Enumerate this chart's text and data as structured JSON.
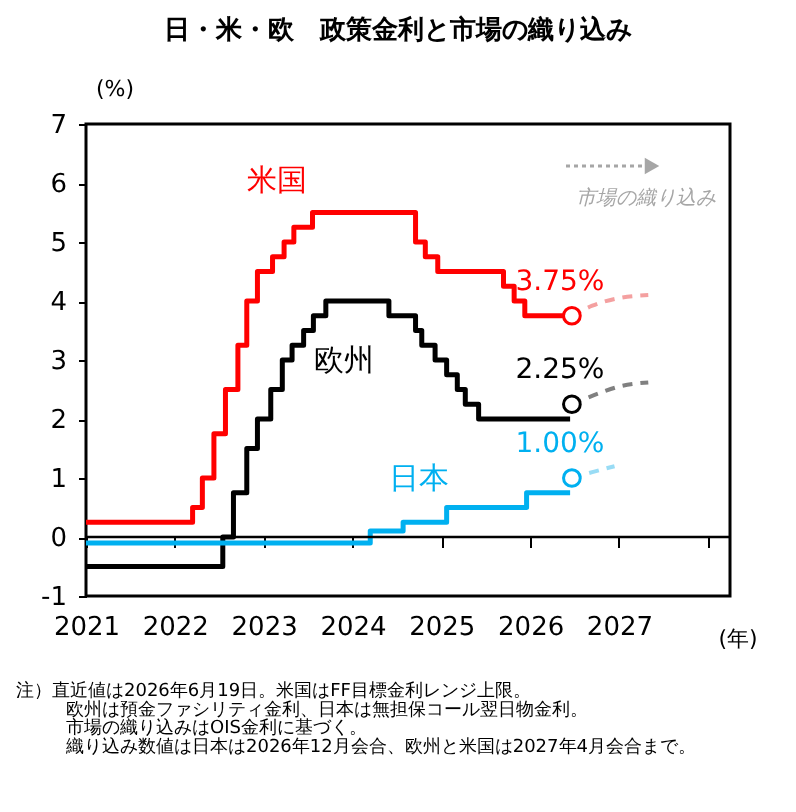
{
  "chart_data": {
    "type": "step",
    "title": "日・米・欧　政策金利と市場の織り込み",
    "ylabel": "(%)",
    "xlabel": "(年)",
    "xlim": [
      2021,
      2028.25
    ],
    "xticks": [
      2021,
      2022,
      2023,
      2024,
      2025,
      2026,
      2027,
      {
        "value": 2028,
        "label": null
      }
    ],
    "ylim": [
      -1,
      7
    ],
    "yticks": [
      -1,
      0,
      1,
      2,
      3,
      4,
      5,
      6,
      7
    ],
    "grid": false,
    "ref_lines": [
      {
        "axis": "y",
        "value": 0,
        "color": "#000000"
      }
    ],
    "annotations": [
      "市場の織り込み",
      "注）直近値は2026年6月19日。米国はFF目標金利レンジ上限。",
      "欧州は預金ファシリティ金利、日本は無担保コール翌日物金利。",
      "市場の織り込みはOIS金利に基づく。",
      "織り込み数値は日本は2026年12月会合、欧州と米国は2027年4月会合まで。"
    ],
    "series": [
      {
        "name": "米国",
        "color": "#ff0000",
        "x": [
          2021,
          2022.2,
          2022.31,
          2022.44,
          2022.57,
          2022.71,
          2022.81,
          2022.93,
          2023.1,
          2023.23,
          2023.34,
          2023.55,
          2024.71,
          2024.82,
          2024.96,
          2025.7,
          2025.82,
          2025.94,
          2026.45
        ],
        "values": [
          0.25,
          0.5,
          1.0,
          1.75,
          2.5,
          3.25,
          4.0,
          4.5,
          4.75,
          5.0,
          5.25,
          5.5,
          5.0,
          4.75,
          4.5,
          4.25,
          4.0,
          3.75,
          3.75
        ]
      },
      {
        "name": "欧州",
        "color": "#000000",
        "x": [
          2021,
          2022.54,
          2022.66,
          2022.81,
          2022.93,
          2023.08,
          2023.21,
          2023.32,
          2023.45,
          2023.56,
          2023.7,
          2024.41,
          2024.71,
          2024.78,
          2024.93,
          2025.06,
          2025.18,
          2025.27,
          2025.42,
          2026.45
        ],
        "values": [
          -0.5,
          0,
          0.75,
          1.5,
          2.0,
          2.5,
          3.0,
          3.25,
          3.5,
          3.75,
          4.0,
          3.75,
          3.5,
          3.25,
          3.0,
          2.75,
          2.5,
          2.25,
          2.0,
          2.0
        ]
      },
      {
        "name": "日本",
        "color": "#00b0f0",
        "x": [
          2021,
          2024.2,
          2024.57,
          2025.06,
          2025.96,
          2026.45
        ],
        "values": [
          -0.1,
          0.1,
          0.25,
          0.5,
          0.75,
          0.75
        ]
      },
      {
        "type": "line",
        "line_style": "dashed",
        "color": "#f4a0a0",
        "x": [
          2026.47,
          2026.7,
          2027.0,
          2027.33
        ],
        "values": [
          3.75,
          3.92,
          4.05,
          4.1
        ]
      },
      {
        "type": "line",
        "line_style": "dashed",
        "color": "#808080",
        "x": [
          2026.47,
          2026.8,
          2027.0,
          2027.33
        ],
        "values": [
          2.25,
          2.45,
          2.55,
          2.62
        ]
      },
      {
        "type": "line",
        "line_style": "dashed",
        "color": "#99dcf5",
        "x": [
          2026.47,
          2026.7,
          2026.95
        ],
        "values": [
          1.0,
          1.1,
          1.2
        ]
      },
      {
        "type": "scatter",
        "marker": "circle",
        "colors": [
          "#ff0000",
          "#000000",
          "#00b0f0"
        ],
        "x": [
          2026.47,
          2026.47,
          2026.47
        ],
        "values": [
          3.75,
          2.25,
          1.0
        ],
        "value_labels": [
          "3.75%",
          "2.25%",
          "1.00%"
        ]
      }
    ]
  }
}
